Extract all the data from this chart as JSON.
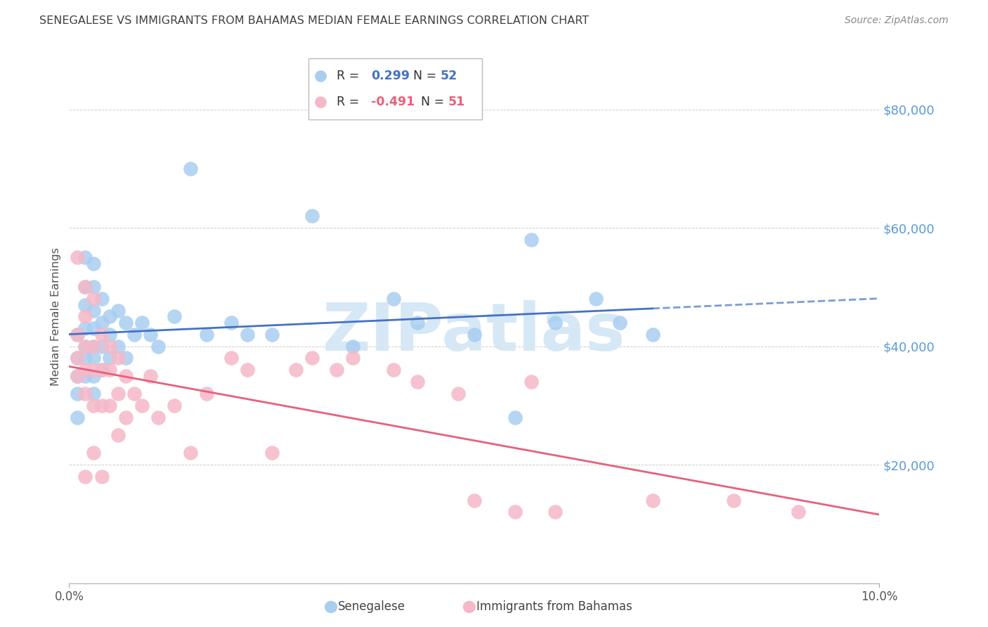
{
  "title": "SENEGALESE VS IMMIGRANTS FROM BAHAMAS MEDIAN FEMALE EARNINGS CORRELATION CHART",
  "source": "Source: ZipAtlas.com",
  "ylabel": "Median Female Earnings",
  "right_ytick_values": [
    80000,
    60000,
    40000,
    20000
  ],
  "ylim": [
    0,
    90000
  ],
  "xlim": [
    0.0,
    0.1
  ],
  "label_senegalese": "Senegalese",
  "label_bahamas": "Immigrants from Bahamas",
  "blue_color": "#A8CEF0",
  "pink_color": "#F5B8C8",
  "blue_line_color": "#4472C4",
  "pink_line_color": "#E8607A",
  "watermark_text": "ZIPatlas",
  "watermark_color": "#D6E8F5",
  "background_color": "#FFFFFF",
  "grid_color": "#CCCCCC",
  "right_axis_color": "#5B9BD5",
  "title_color": "#404040",
  "blue_R": 0.299,
  "blue_N": 52,
  "pink_R": -0.491,
  "pink_N": 51,
  "senegalese_x": [
    0.001,
    0.001,
    0.001,
    0.001,
    0.001,
    0.002,
    0.002,
    0.002,
    0.002,
    0.002,
    0.002,
    0.002,
    0.003,
    0.003,
    0.003,
    0.003,
    0.003,
    0.003,
    0.003,
    0.003,
    0.004,
    0.004,
    0.004,
    0.004,
    0.005,
    0.005,
    0.005,
    0.006,
    0.006,
    0.007,
    0.007,
    0.008,
    0.009,
    0.01,
    0.011,
    0.013,
    0.015,
    0.017,
    0.02,
    0.022,
    0.025,
    0.03,
    0.035,
    0.04,
    0.043,
    0.05,
    0.055,
    0.057,
    0.06,
    0.065,
    0.068,
    0.072
  ],
  "senegalese_y": [
    42000,
    38000,
    35000,
    32000,
    28000,
    55000,
    50000,
    47000,
    43000,
    40000,
    38000,
    35000,
    54000,
    50000,
    46000,
    43000,
    40000,
    38000,
    35000,
    32000,
    48000,
    44000,
    40000,
    36000,
    45000,
    42000,
    38000,
    46000,
    40000,
    44000,
    38000,
    42000,
    44000,
    42000,
    40000,
    45000,
    70000,
    42000,
    44000,
    42000,
    42000,
    62000,
    40000,
    48000,
    44000,
    42000,
    28000,
    58000,
    44000,
    48000,
    44000,
    42000
  ],
  "bahamas_x": [
    0.001,
    0.001,
    0.001,
    0.001,
    0.002,
    0.002,
    0.002,
    0.002,
    0.002,
    0.002,
    0.003,
    0.003,
    0.003,
    0.003,
    0.003,
    0.004,
    0.004,
    0.004,
    0.004,
    0.005,
    0.005,
    0.005,
    0.006,
    0.006,
    0.006,
    0.007,
    0.007,
    0.008,
    0.009,
    0.01,
    0.011,
    0.013,
    0.015,
    0.017,
    0.02,
    0.022,
    0.025,
    0.028,
    0.03,
    0.033,
    0.035,
    0.04,
    0.043,
    0.048,
    0.05,
    0.055,
    0.057,
    0.06,
    0.072,
    0.082,
    0.09
  ],
  "bahamas_y": [
    55000,
    42000,
    38000,
    35000,
    50000,
    45000,
    40000,
    36000,
    32000,
    18000,
    48000,
    40000,
    36000,
    30000,
    22000,
    42000,
    36000,
    30000,
    18000,
    40000,
    36000,
    30000,
    38000,
    32000,
    25000,
    35000,
    28000,
    32000,
    30000,
    35000,
    28000,
    30000,
    22000,
    32000,
    38000,
    36000,
    22000,
    36000,
    38000,
    36000,
    38000,
    36000,
    34000,
    32000,
    14000,
    12000,
    34000,
    12000,
    14000,
    14000,
    12000
  ]
}
